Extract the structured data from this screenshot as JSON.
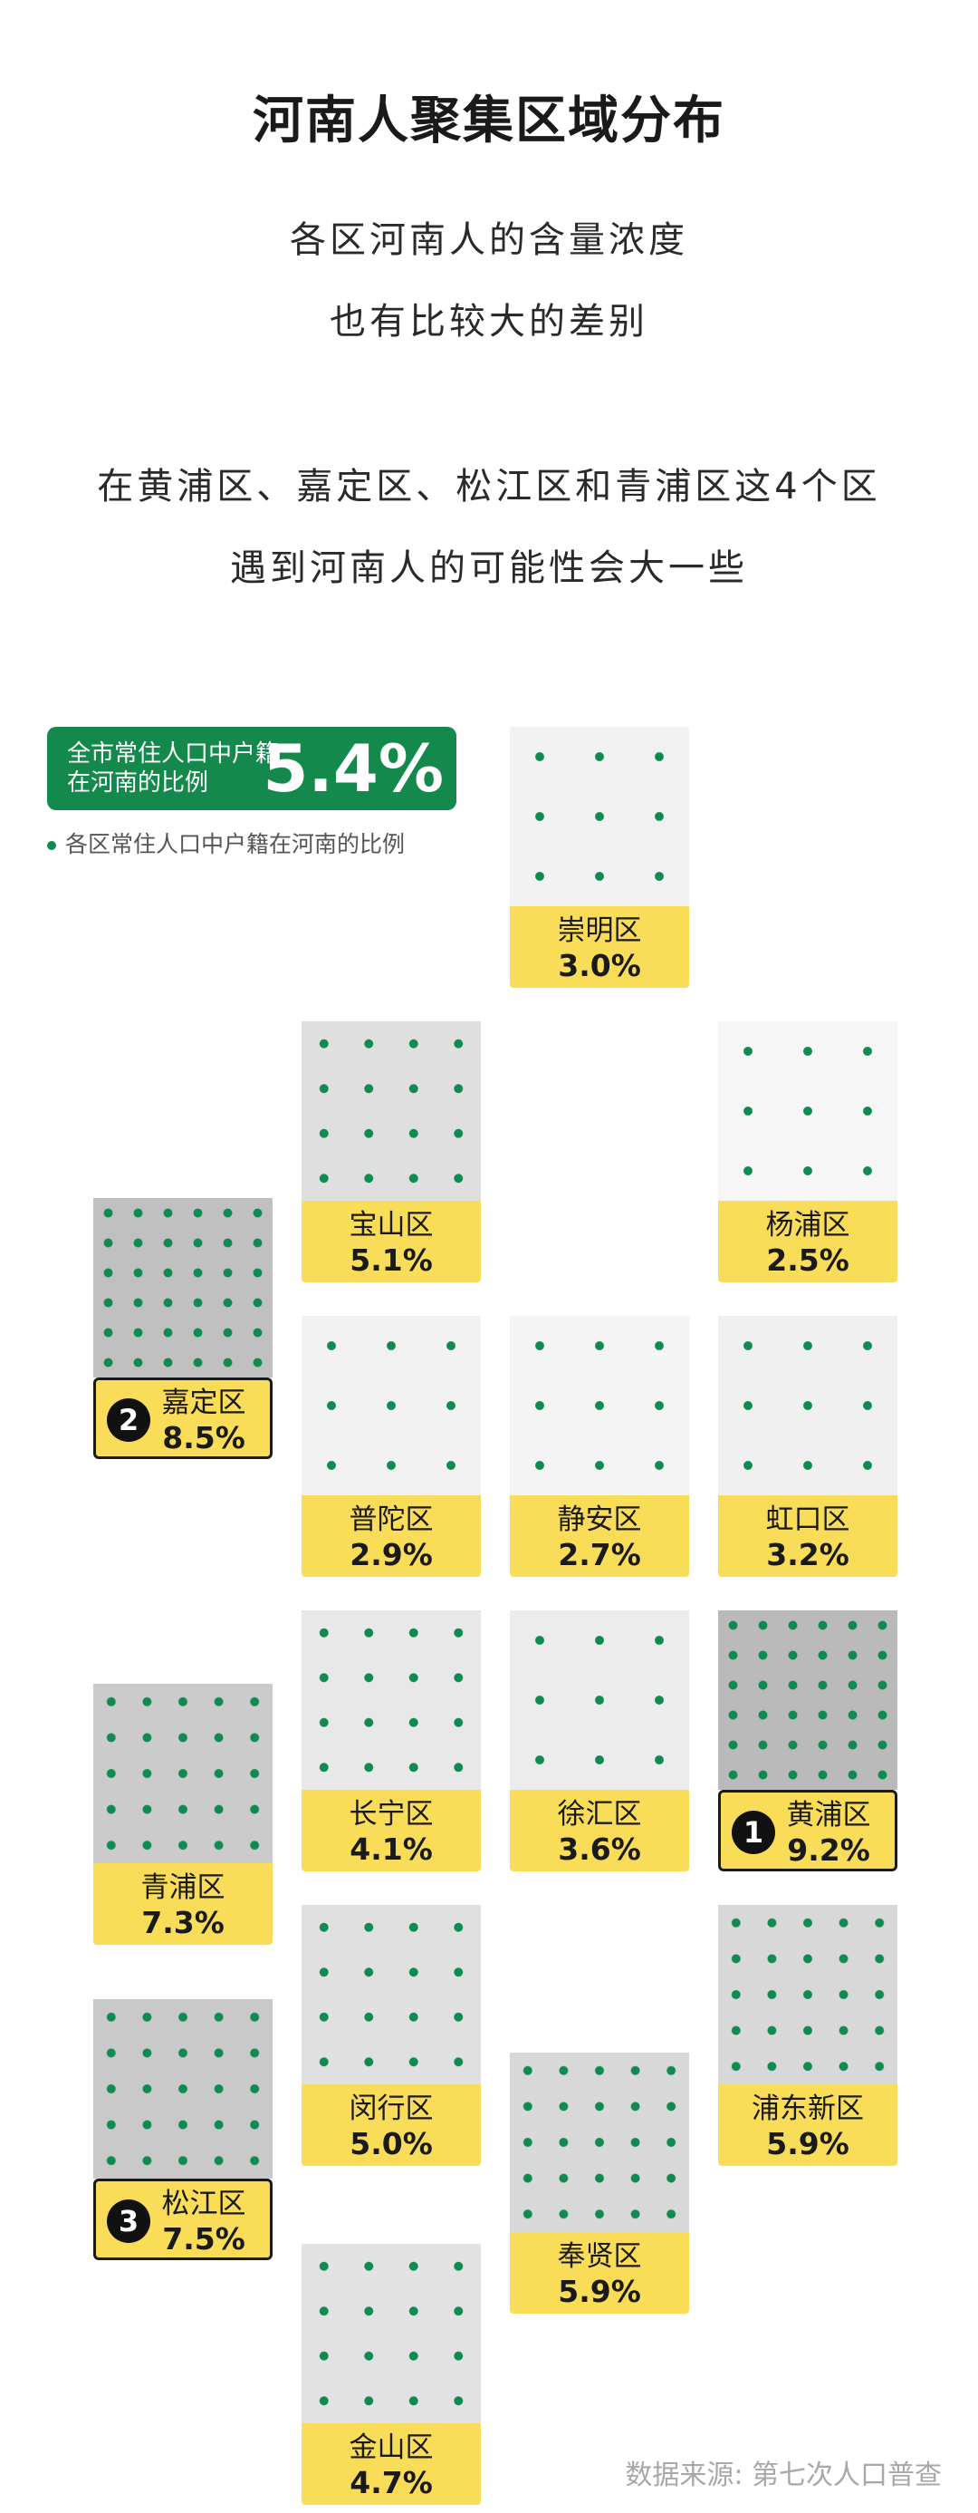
{
  "title": "河南人聚集区域分布",
  "subtitle_lines": [
    "各区河南人的含量浓度",
    "也有比较大的差别",
    "在黄浦区、嘉定区、松江区和青浦区这4个区",
    "遇到河南人的可能性会大一些"
  ],
  "legend": {
    "label": "全市常住人口中户籍在河南的比例",
    "value": "5.4%",
    "note": "各区常住人口中户籍在河南的比例"
  },
  "source": "数据来源: 第七次人口普查",
  "colors": {
    "dot": "#0f8a50",
    "label_bg": "#f9dc58",
    "legend_bg": "#138a4c"
  },
  "chart_data": {
    "type": "heatmap",
    "citywide_value": 5.4,
    "districts": [
      {
        "name": "崇明区",
        "value": 3.0,
        "label": "3.0%",
        "col": 2,
        "row": 0
      },
      {
        "name": "宝山区",
        "value": 5.1,
        "label": "5.1%",
        "col": 1,
        "row": 1
      },
      {
        "name": "杨浦区",
        "value": 2.5,
        "label": "2.5%",
        "col": 3,
        "row": 1
      },
      {
        "name": "嘉定区",
        "value": 8.5,
        "label": "8.5%",
        "col": 0,
        "row": 1.6,
        "rank": "2"
      },
      {
        "name": "普陀区",
        "value": 2.9,
        "label": "2.9%",
        "col": 1,
        "row": 2
      },
      {
        "name": "静安区",
        "value": 2.7,
        "label": "2.7%",
        "col": 2,
        "row": 2
      },
      {
        "name": "虹口区",
        "value": 3.2,
        "label": "3.2%",
        "col": 3,
        "row": 2
      },
      {
        "name": "长宁区",
        "value": 4.1,
        "label": "4.1%",
        "col": 1,
        "row": 3
      },
      {
        "name": "徐汇区",
        "value": 3.6,
        "label": "3.6%",
        "col": 2,
        "row": 3
      },
      {
        "name": "黄浦区",
        "value": 9.2,
        "label": "9.2%",
        "col": 3,
        "row": 3,
        "rank": "1"
      },
      {
        "name": "青浦区",
        "value": 7.3,
        "label": "7.3%",
        "col": 0,
        "row": 3.25
      },
      {
        "name": "闵行区",
        "value": 5.0,
        "label": "5.0%",
        "col": 1,
        "row": 4
      },
      {
        "name": "浦东新区",
        "value": 5.9,
        "label": "5.9%",
        "col": 3,
        "row": 4
      },
      {
        "name": "松江区",
        "value": 7.5,
        "label": "7.5%",
        "col": 0,
        "row": 4.32,
        "rank": "3"
      },
      {
        "name": "奉贤区",
        "value": 5.9,
        "label": "5.9%",
        "col": 2,
        "row": 4.5
      },
      {
        "name": "金山区",
        "value": 4.7,
        "label": "4.7%",
        "col": 1,
        "row": 5.15
      }
    ]
  }
}
